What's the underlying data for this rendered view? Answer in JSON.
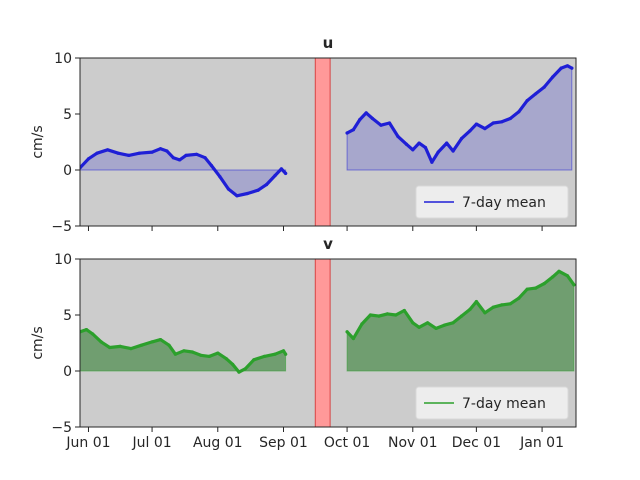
{
  "chart_data": [
    {
      "type": "area",
      "title": "u",
      "ylabel": "cm/s",
      "ylim": [
        -5,
        10
      ],
      "yticks": [
        "10",
        "5",
        "0",
        "−5"
      ],
      "xlim": [
        "2021-05-28",
        "2022-01-17"
      ],
      "xticks": [
        "Jun 01",
        "Jul 01",
        "Aug 01",
        "Sep 01",
        "Oct 01",
        "Nov 01",
        "Dec 01",
        "Jan 01"
      ],
      "xtick_labels_visible": false,
      "background": "#cccccc",
      "gap_span": [
        "2021-09-16",
        "2021-09-23"
      ],
      "gap_color": "#ff9999",
      "legend": {
        "label": "7-day mean",
        "placement": "lower-right"
      },
      "series": [
        {
          "name": "7-day mean",
          "color": "#1f1fd6",
          "fill": "#a3a3cc",
          "segments": [
            [
              [
                "2021-05-28",
                0.2
              ],
              [
                "2021-06-01",
                1.0
              ],
              [
                "2021-06-05",
                1.5
              ],
              [
                "2021-06-10",
                1.8
              ],
              [
                "2021-06-15",
                1.5
              ],
              [
                "2021-06-20",
                1.3
              ],
              [
                "2021-06-25",
                1.5
              ],
              [
                "2021-07-01",
                1.6
              ],
              [
                "2021-07-05",
                1.9
              ],
              [
                "2021-07-08",
                1.7
              ],
              [
                "2021-07-11",
                1.1
              ],
              [
                "2021-07-14",
                0.9
              ],
              [
                "2021-07-17",
                1.3
              ],
              [
                "2021-07-22",
                1.4
              ],
              [
                "2021-07-26",
                1.1
              ],
              [
                "2021-07-29",
                0.4
              ],
              [
                "2021-08-02",
                -0.6
              ],
              [
                "2021-08-06",
                -1.7
              ],
              [
                "2021-08-10",
                -2.3
              ],
              [
                "2021-08-15",
                -2.1
              ],
              [
                "2021-08-20",
                -1.8
              ],
              [
                "2021-08-24",
                -1.3
              ],
              [
                "2021-08-28",
                -0.5
              ],
              [
                "2021-08-31",
                0.1
              ],
              [
                "2021-09-02",
                -0.3
              ]
            ],
            [
              [
                "2021-10-01",
                3.3
              ],
              [
                "2021-10-04",
                3.6
              ],
              [
                "2021-10-07",
                4.5
              ],
              [
                "2021-10-10",
                5.1
              ],
              [
                "2021-10-13",
                4.6
              ],
              [
                "2021-10-17",
                4.0
              ],
              [
                "2021-10-21",
                4.2
              ],
              [
                "2021-10-25",
                3.0
              ],
              [
                "2021-10-29",
                2.3
              ],
              [
                "2021-11-01",
                1.8
              ],
              [
                "2021-11-04",
                2.4
              ],
              [
                "2021-11-07",
                2.0
              ],
              [
                "2021-11-10",
                0.7
              ],
              [
                "2021-11-13",
                1.6
              ],
              [
                "2021-11-17",
                2.4
              ],
              [
                "2021-11-20",
                1.7
              ],
              [
                "2021-11-24",
                2.8
              ],
              [
                "2021-11-28",
                3.5
              ],
              [
                "2021-12-01",
                4.1
              ],
              [
                "2021-12-05",
                3.7
              ],
              [
                "2021-12-09",
                4.2
              ],
              [
                "2021-12-13",
                4.3
              ],
              [
                "2021-12-17",
                4.6
              ],
              [
                "2021-12-21",
                5.2
              ],
              [
                "2021-12-25",
                6.2
              ],
              [
                "2021-12-29",
                6.8
              ],
              [
                "2022-01-02",
                7.4
              ],
              [
                "2022-01-06",
                8.3
              ],
              [
                "2022-01-10",
                9.1
              ],
              [
                "2022-01-13",
                9.3
              ],
              [
                "2022-01-15",
                9.1
              ]
            ]
          ]
        }
      ]
    },
    {
      "type": "area",
      "title": "v",
      "ylabel": "cm/s",
      "ylim": [
        -5,
        10
      ],
      "yticks": [
        "10",
        "5",
        "0",
        "−5"
      ],
      "xlim": [
        "2021-05-28",
        "2022-01-17"
      ],
      "xticks": [
        "Jun 01",
        "Jul 01",
        "Aug 01",
        "Sep 01",
        "Oct 01",
        "Nov 01",
        "Dec 01",
        "Jan 01"
      ],
      "xtick_labels_visible": true,
      "background": "#cccccc",
      "gap_span": [
        "2021-09-16",
        "2021-09-23"
      ],
      "gap_color": "#ff9999",
      "legend": {
        "label": "7-day mean",
        "placement": "lower-right"
      },
      "series": [
        {
          "name": "7-day mean",
          "color": "#2ca02c",
          "fill": "#669966",
          "segments": [
            [
              [
                "2021-05-28",
                3.5
              ],
              [
                "2021-05-31",
                3.7
              ],
              [
                "2021-06-03",
                3.3
              ],
              [
                "2021-06-07",
                2.6
              ],
              [
                "2021-06-11",
                2.1
              ],
              [
                "2021-06-16",
                2.2
              ],
              [
                "2021-06-21",
                2.0
              ],
              [
                "2021-06-26",
                2.3
              ],
              [
                "2021-07-01",
                2.6
              ],
              [
                "2021-07-05",
                2.8
              ],
              [
                "2021-07-09",
                2.3
              ],
              [
                "2021-07-12",
                1.5
              ],
              [
                "2021-07-16",
                1.8
              ],
              [
                "2021-07-20",
                1.7
              ],
              [
                "2021-07-24",
                1.4
              ],
              [
                "2021-07-28",
                1.3
              ],
              [
                "2021-08-01",
                1.6
              ],
              [
                "2021-08-05",
                1.1
              ],
              [
                "2021-08-08",
                0.6
              ],
              [
                "2021-08-11",
                -0.1
              ],
              [
                "2021-08-14",
                0.2
              ],
              [
                "2021-08-18",
                1.0
              ],
              [
                "2021-08-23",
                1.3
              ],
              [
                "2021-08-28",
                1.5
              ],
              [
                "2021-09-01",
                1.8
              ],
              [
                "2021-09-02",
                1.5
              ]
            ],
            [
              [
                "2021-10-01",
                3.5
              ],
              [
                "2021-10-04",
                2.9
              ],
              [
                "2021-10-08",
                4.2
              ],
              [
                "2021-10-12",
                5.0
              ],
              [
                "2021-10-16",
                4.9
              ],
              [
                "2021-10-20",
                5.1
              ],
              [
                "2021-10-24",
                5.0
              ],
              [
                "2021-10-28",
                5.4
              ],
              [
                "2021-11-01",
                4.3
              ],
              [
                "2021-11-04",
                3.9
              ],
              [
                "2021-11-08",
                4.3
              ],
              [
                "2021-11-12",
                3.8
              ],
              [
                "2021-11-16",
                4.1
              ],
              [
                "2021-11-20",
                4.3
              ],
              [
                "2021-11-24",
                4.9
              ],
              [
                "2021-11-28",
                5.5
              ],
              [
                "2021-12-01",
                6.2
              ],
              [
                "2021-12-05",
                5.2
              ],
              [
                "2021-12-09",
                5.7
              ],
              [
                "2021-12-13",
                5.9
              ],
              [
                "2021-12-17",
                6.0
              ],
              [
                "2021-12-21",
                6.5
              ],
              [
                "2021-12-25",
                7.3
              ],
              [
                "2021-12-29",
                7.4
              ],
              [
                "2022-01-02",
                7.8
              ],
              [
                "2022-01-06",
                8.4
              ],
              [
                "2022-01-09",
                8.9
              ],
              [
                "2022-01-13",
                8.5
              ],
              [
                "2022-01-16",
                7.7
              ]
            ]
          ]
        }
      ]
    }
  ]
}
